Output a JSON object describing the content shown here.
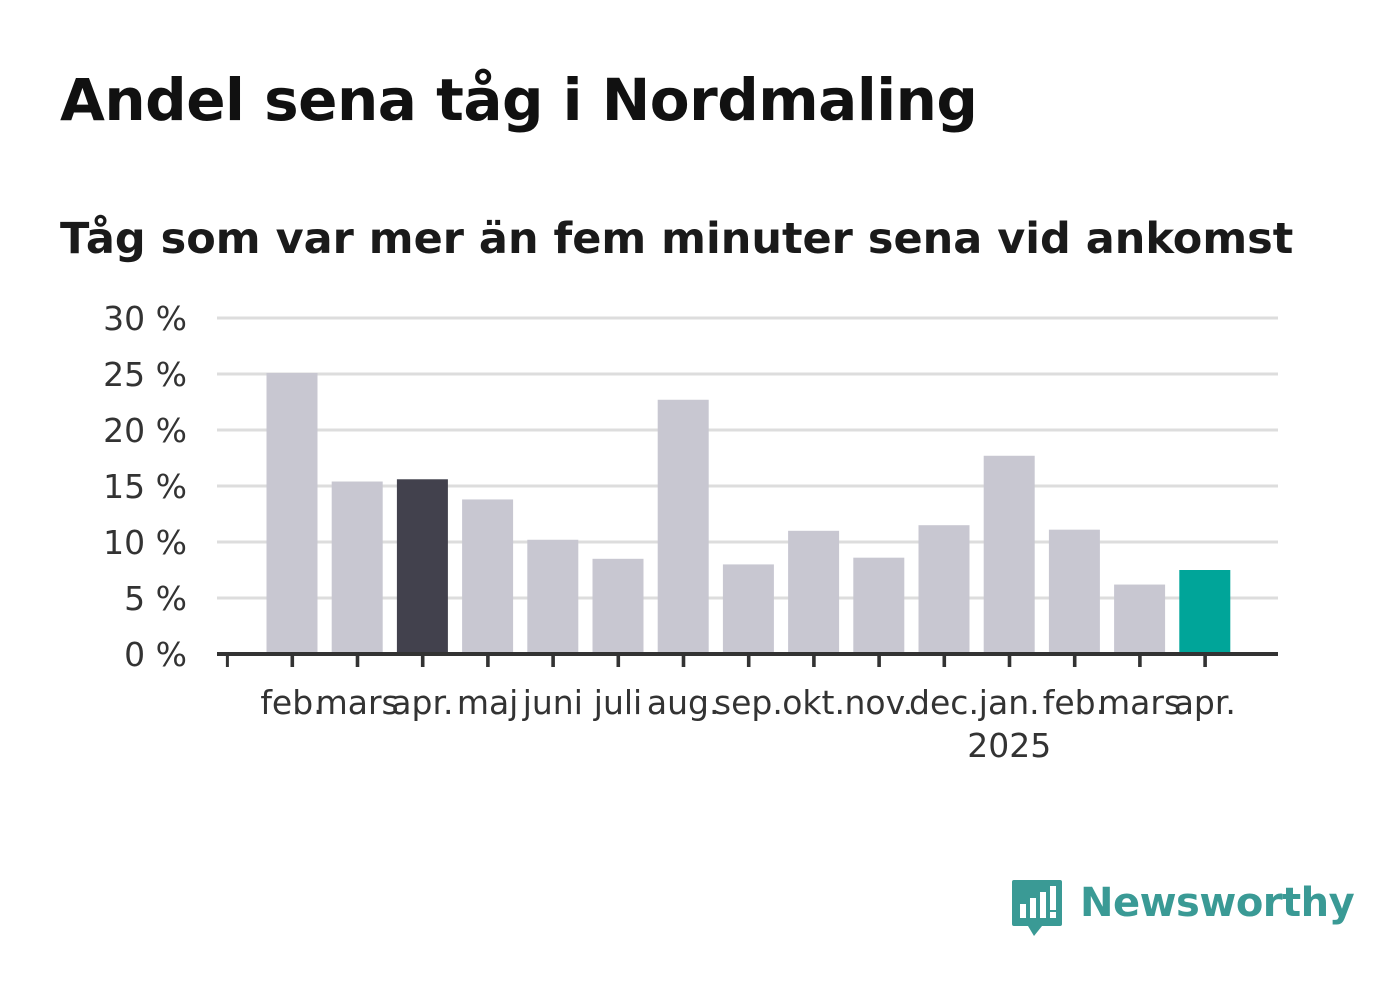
{
  "header": {
    "title": "Andel sena tåg i Nordmaling",
    "subtitle": "Tåg som var mer än fem minuter sena vid ankomst"
  },
  "brand": {
    "name": "Newsworthy",
    "icon": "bar-chart-speech-bubble-icon",
    "color": "#3a9a95"
  },
  "colors": {
    "bar_default": "#c8c7d1",
    "bar_highlight_dark": "#42414d",
    "bar_highlight_accent": "#00a599",
    "grid": "#dddddd",
    "axis": "#333333"
  },
  "chart_data": {
    "type": "bar",
    "categories": [
      "feb.",
      "mars",
      "apr.",
      "maj",
      "juni",
      "juli",
      "aug.",
      "sep.",
      "okt.",
      "nov.",
      "dec.",
      "jan.",
      "feb.",
      "mars",
      "apr."
    ],
    "year_labels": [
      {
        "index": 11,
        "label": "2025"
      }
    ],
    "values": [
      25.1,
      15.4,
      15.6,
      13.8,
      10.2,
      8.5,
      22.7,
      8.0,
      11.0,
      8.6,
      11.5,
      17.7,
      11.1,
      6.2,
      7.5
    ],
    "highlight": [
      {
        "index": 2,
        "style": "dark"
      },
      {
        "index": 14,
        "style": "accent"
      }
    ],
    "yticks": [
      "0 %",
      "5 %",
      "10 %",
      "15 %",
      "20 %",
      "25 %",
      "30 %"
    ],
    "ylim": [
      0,
      30
    ],
    "grid": true,
    "legend": "none"
  }
}
